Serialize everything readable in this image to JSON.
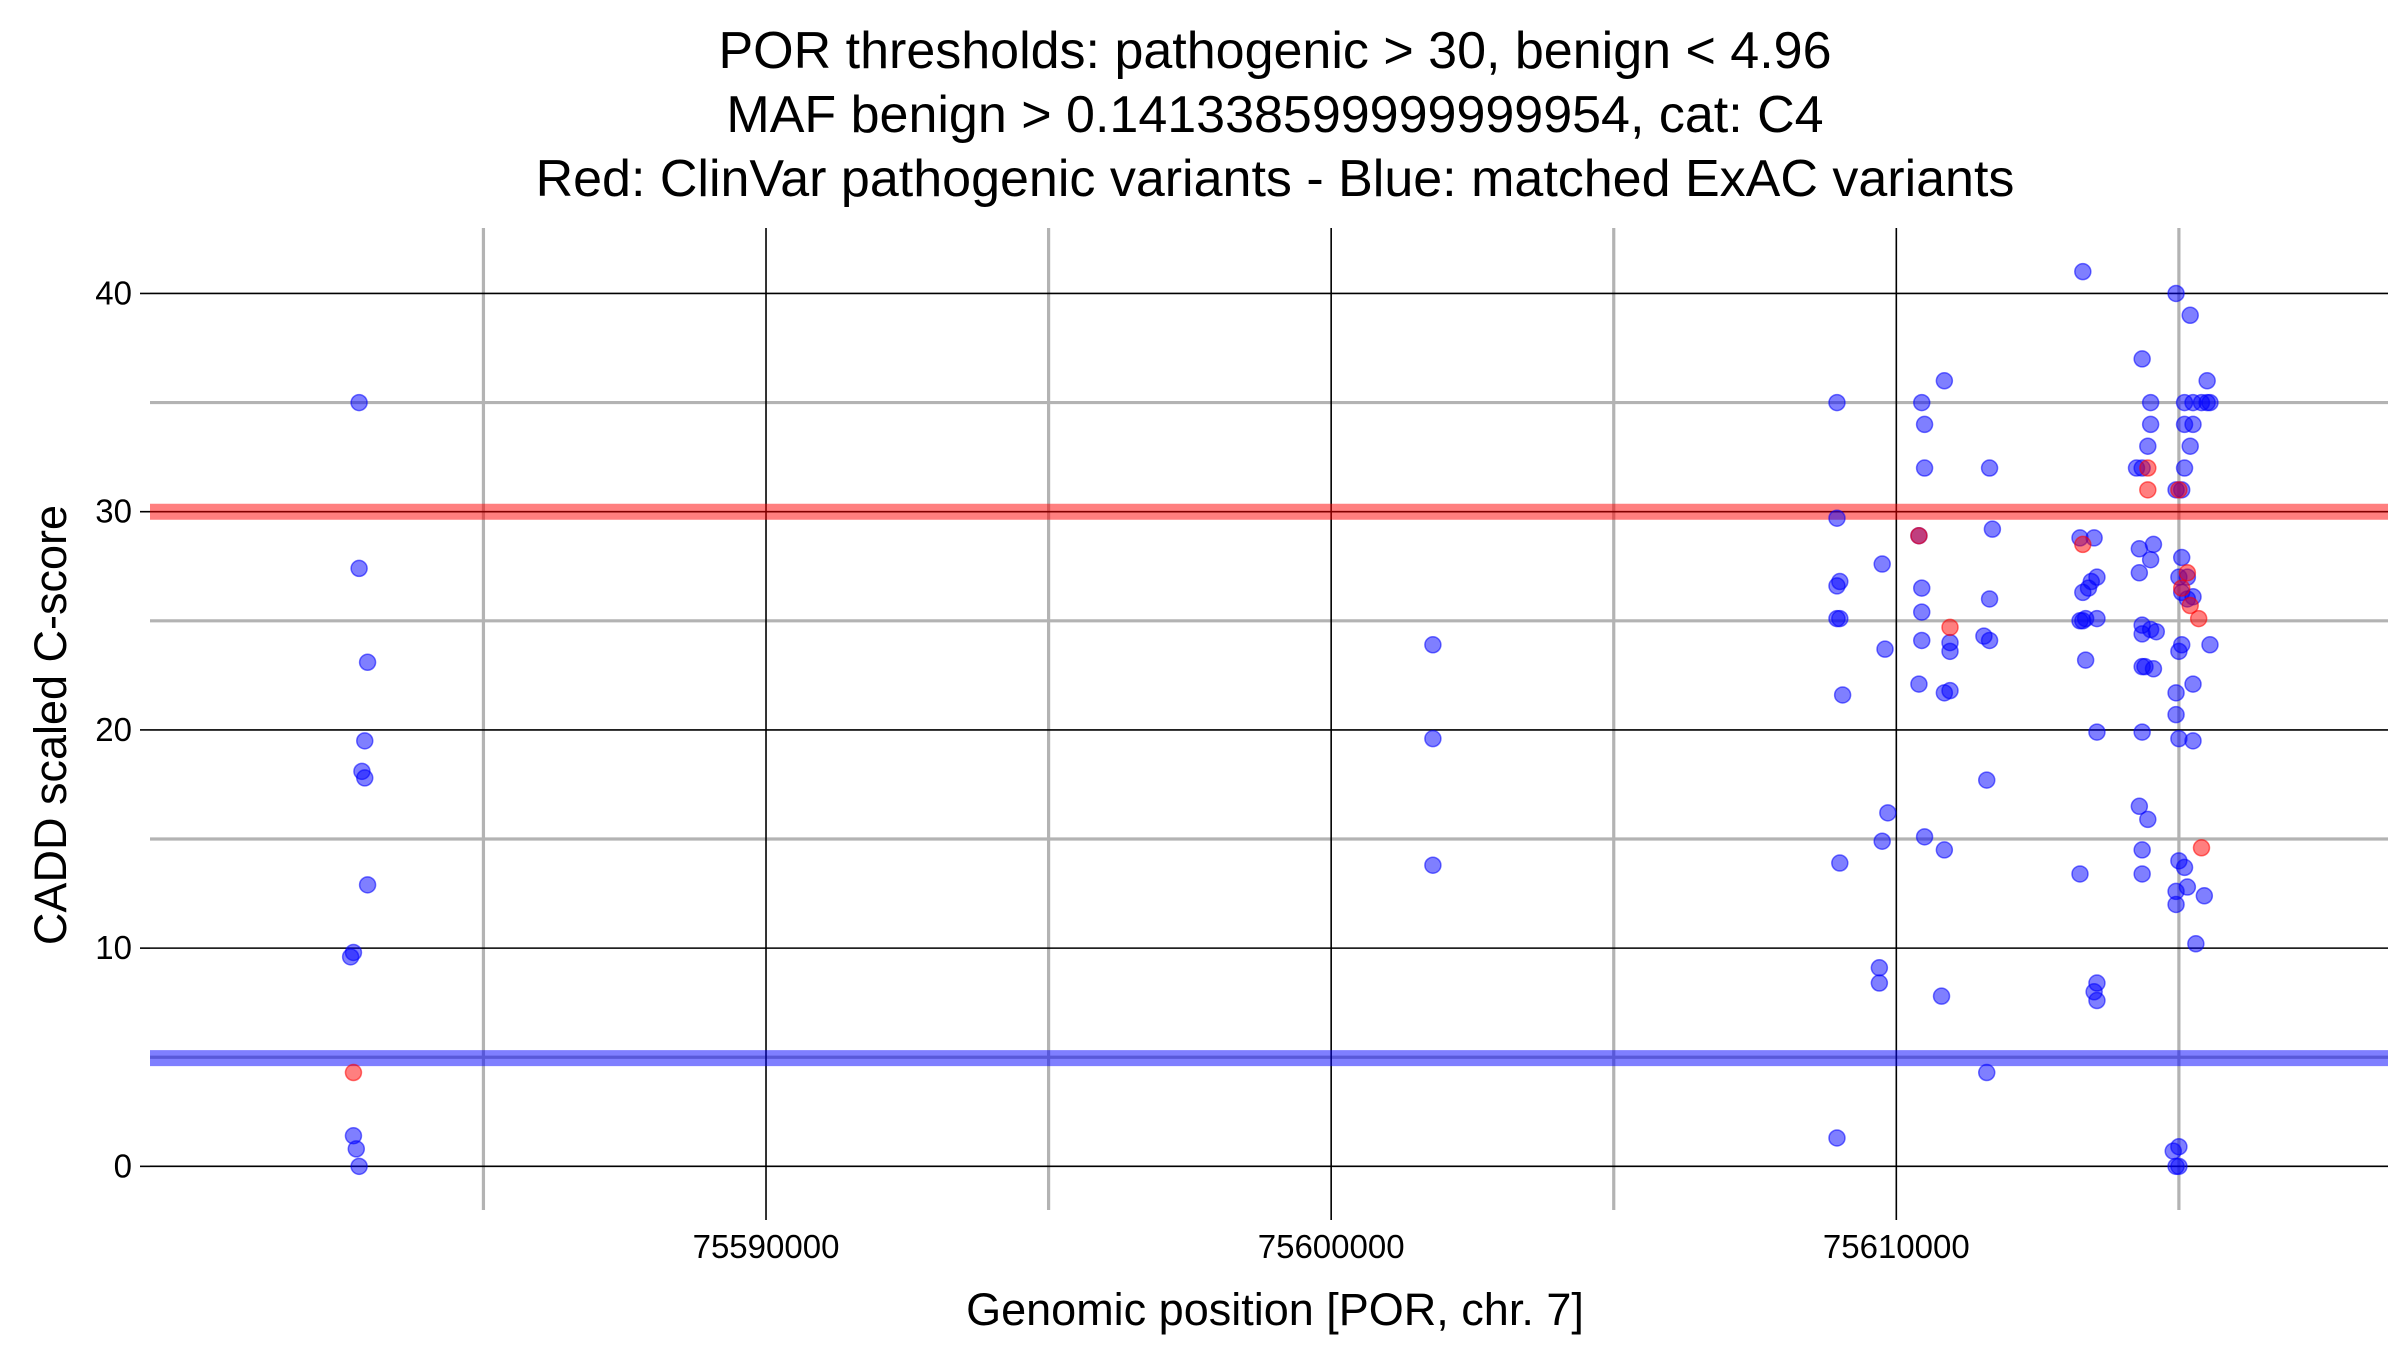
{
  "chart_data": {
    "type": "scatter",
    "title_lines": [
      "POR thresholds: pathogenic > 30, benign < 4.96",
      "MAF benign > 0.141338599999999954, cat: C4",
      "Red: ClinVar pathogenic variants - Blue: matched ExAC variants"
    ],
    "xlabel": "Genomic position [POR, chr. 7]",
    "ylabel": "CADD scaled C-score",
    "xlim": [
      75579100,
      75618700
    ],
    "ylim": [
      -2.0,
      43.0
    ],
    "x_ticks": [
      75590000,
      75600000,
      75610000
    ],
    "x_tick_labels": [
      "75590000",
      "75600000",
      "75610000"
    ],
    "x_minor_grid": [
      75585000,
      75595000,
      75605000,
      75615000
    ],
    "y_ticks": [
      0,
      10,
      20,
      30,
      40
    ],
    "y_tick_labels": [
      "0",
      "10",
      "20",
      "30",
      "40"
    ],
    "y_minor_grid": [
      5,
      15,
      25,
      35
    ],
    "thresholds": [
      {
        "name": "pathogenic",
        "value": 30,
        "color": "#ff0000"
      },
      {
        "name": "benign",
        "value": 4.96,
        "color": "#0000ff"
      }
    ],
    "series": [
      {
        "name": "ClinVar pathogenic variants",
        "color": "#ff0000",
        "points": [
          [
            75582700,
            4.3
          ],
          [
            75610400,
            28.9
          ],
          [
            75610950,
            24.7
          ],
          [
            75613300,
            28.5
          ],
          [
            75614450,
            32.0
          ],
          [
            75614450,
            31.0
          ],
          [
            75615000,
            31.0
          ],
          [
            75615050,
            26.5
          ],
          [
            75615150,
            27.2
          ],
          [
            75615200,
            25.7
          ],
          [
            75615350,
            25.1
          ],
          [
            75615400,
            14.6
          ]
        ]
      },
      {
        "name": "matched ExAC variants",
        "color": "#0000ff",
        "points": [
          [
            75582800,
            35.0
          ],
          [
            75582800,
            27.4
          ],
          [
            75582950,
            23.1
          ],
          [
            75582900,
            19.5
          ],
          [
            75582850,
            18.1
          ],
          [
            75582900,
            17.8
          ],
          [
            75582950,
            12.9
          ],
          [
            75582700,
            9.8
          ],
          [
            75582650,
            9.6
          ],
          [
            75582700,
            1.4
          ],
          [
            75582750,
            0.8
          ],
          [
            75582800,
            0.0
          ],
          [
            75601800,
            23.9
          ],
          [
            75601800,
            19.6
          ],
          [
            75601800,
            13.8
          ],
          [
            75608950,
            35.0
          ],
          [
            75608950,
            29.7
          ],
          [
            75609000,
            26.8
          ],
          [
            75608950,
            26.6
          ],
          [
            75609000,
            25.1
          ],
          [
            75608950,
            25.1
          ],
          [
            75609050,
            21.6
          ],
          [
            75609000,
            13.9
          ],
          [
            75608950,
            1.3
          ],
          [
            75609750,
            27.6
          ],
          [
            75609800,
            23.7
          ],
          [
            75609850,
            16.2
          ],
          [
            75609750,
            14.9
          ],
          [
            75609700,
            9.1
          ],
          [
            75609700,
            8.4
          ],
          [
            75610450,
            35.0
          ],
          [
            75610500,
            34.0
          ],
          [
            75610500,
            32.0
          ],
          [
            75610400,
            28.9
          ],
          [
            75610450,
            26.5
          ],
          [
            75610450,
            25.4
          ],
          [
            75610450,
            24.1
          ],
          [
            75610400,
            22.1
          ],
          [
            75610500,
            15.1
          ],
          [
            75610850,
            36.0
          ],
          [
            75610950,
            24.0
          ],
          [
            75610950,
            23.6
          ],
          [
            75610850,
            21.7
          ],
          [
            75610950,
            21.8
          ],
          [
            75610850,
            14.5
          ],
          [
            75610800,
            7.8
          ],
          [
            75611650,
            32.0
          ],
          [
            75611700,
            29.2
          ],
          [
            75611650,
            26.0
          ],
          [
            75611550,
            24.3
          ],
          [
            75611650,
            24.1
          ],
          [
            75611600,
            17.7
          ],
          [
            75611600,
            4.3
          ],
          [
            75613300,
            41.0
          ],
          [
            75613250,
            28.8
          ],
          [
            75613500,
            28.8
          ],
          [
            75613450,
            26.8
          ],
          [
            75613550,
            27.0
          ],
          [
            75613300,
            26.3
          ],
          [
            75613400,
            26.5
          ],
          [
            75613250,
            25.0
          ],
          [
            75613350,
            25.1
          ],
          [
            75613300,
            25.0
          ],
          [
            75613550,
            25.1
          ],
          [
            75613350,
            23.2
          ],
          [
            75613550,
            19.9
          ],
          [
            75613250,
            13.4
          ],
          [
            75613550,
            8.4
          ],
          [
            75613500,
            8.0
          ],
          [
            75613550,
            7.6
          ],
          [
            75614350,
            37.0
          ],
          [
            75614250,
            32.0
          ],
          [
            75614350,
            32.0
          ],
          [
            75614500,
            35.0
          ],
          [
            75614500,
            34.0
          ],
          [
            75614450,
            33.0
          ],
          [
            75614300,
            28.3
          ],
          [
            75614550,
            28.5
          ],
          [
            75614300,
            27.2
          ],
          [
            75614500,
            27.8
          ],
          [
            75614350,
            24.8
          ],
          [
            75614500,
            24.6
          ],
          [
            75614350,
            24.4
          ],
          [
            75614600,
            24.5
          ],
          [
            75614350,
            22.9
          ],
          [
            75614400,
            22.9
          ],
          [
            75614550,
            22.8
          ],
          [
            75614350,
            19.9
          ],
          [
            75614300,
            16.5
          ],
          [
            75614450,
            15.9
          ],
          [
            75614350,
            14.5
          ],
          [
            75614350,
            13.4
          ],
          [
            75614950,
            40.0
          ],
          [
            75615200,
            39.0
          ],
          [
            75615100,
            35.0
          ],
          [
            75615250,
            35.0
          ],
          [
            75615500,
            36.0
          ],
          [
            75615400,
            35.0
          ],
          [
            75615500,
            35.0
          ],
          [
            75615550,
            35.0
          ],
          [
            75615100,
            34.0
          ],
          [
            75615250,
            34.0
          ],
          [
            75615200,
            33.0
          ],
          [
            75615100,
            32.0
          ],
          [
            75614950,
            31.0
          ],
          [
            75615050,
            31.0
          ],
          [
            75615050,
            27.9
          ],
          [
            75615000,
            27.0
          ],
          [
            75615150,
            27.0
          ],
          [
            75615050,
            26.3
          ],
          [
            75615150,
            26.0
          ],
          [
            75615250,
            26.1
          ],
          [
            75615050,
            23.9
          ],
          [
            75615000,
            23.6
          ],
          [
            75615550,
            23.9
          ],
          [
            75615250,
            22.1
          ],
          [
            75614950,
            21.7
          ],
          [
            75614950,
            20.7
          ],
          [
            75615000,
            19.6
          ],
          [
            75615250,
            19.5
          ],
          [
            75615000,
            14.0
          ],
          [
            75615100,
            13.7
          ],
          [
            75614950,
            12.6
          ],
          [
            75615150,
            12.8
          ],
          [
            75615450,
            12.4
          ],
          [
            75614950,
            12.0
          ],
          [
            75615300,
            10.2
          ],
          [
            75614900,
            0.7
          ],
          [
            75615000,
            0.9
          ],
          [
            75614950,
            0.0
          ],
          [
            75615000,
            0.0
          ]
        ]
      }
    ]
  }
}
